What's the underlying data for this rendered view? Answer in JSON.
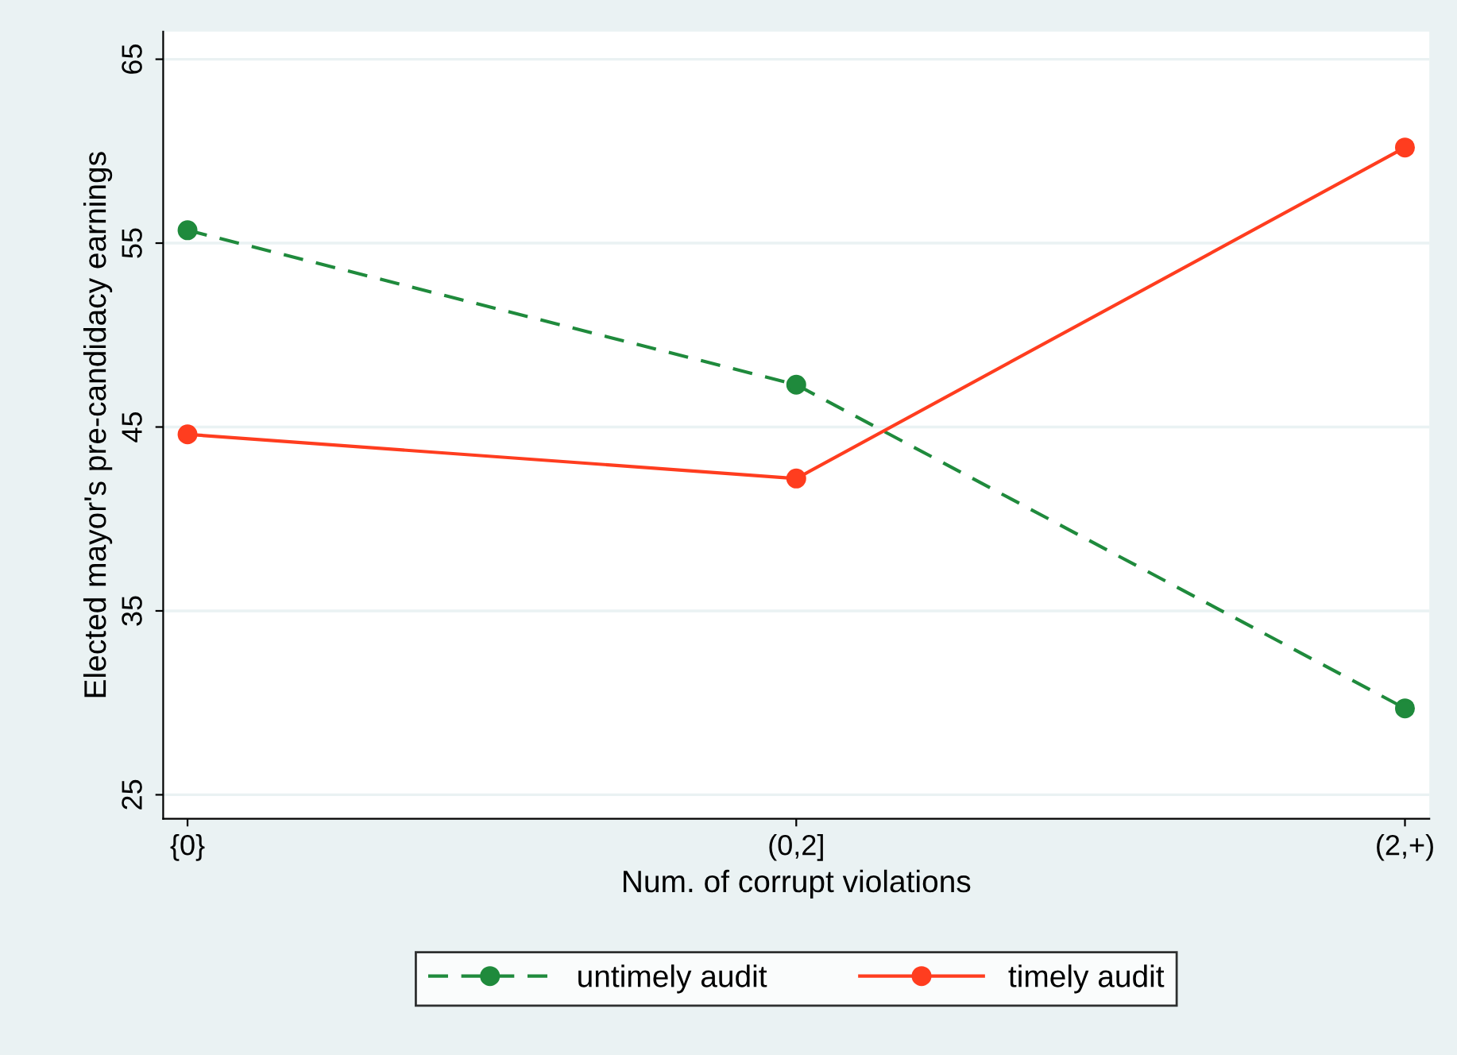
{
  "chart_data": {
    "type": "line",
    "xlabel": "Num. of corrupt violations",
    "ylabel": "Elected mayor's pre-candidacy earnings",
    "categories": [
      "{0}",
      "(0,2]",
      "(2,+)"
    ],
    "series": [
      {
        "name": "untimely audit",
        "color": "#1f8a3c",
        "values": [
          55.7,
          47.3,
          29.7
        ],
        "line_style": "dashed"
      },
      {
        "name": "timely audit",
        "color": "#ff3d1f",
        "values": [
          44.6,
          42.2,
          60.2
        ],
        "line_style": "solid"
      }
    ],
    "marker": "circle",
    "ylim": [
      23.7,
      66.5
    ],
    "yticks": [
      25,
      35,
      45,
      55,
      65
    ],
    "grid": "y",
    "legend": "bottom"
  }
}
